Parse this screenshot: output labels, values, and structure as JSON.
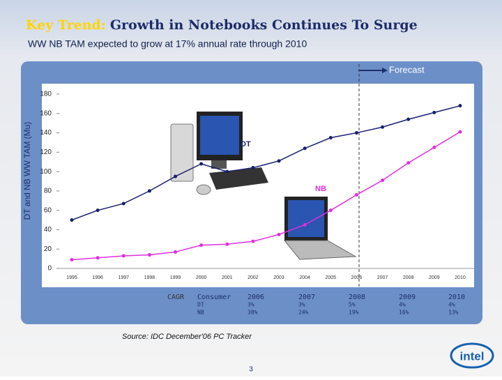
{
  "title_lead": "Key Trend:",
  "title": "Growth in Notebooks Continues To Surge",
  "subtitle": "WW NB TAM expected to grow at 17% annual rate through 2010",
  "chart_data": {
    "type": "line",
    "y_label": "DT and NB WW TAM (Mu)",
    "categories": [
      "1995",
      "1996",
      "1997",
      "1998",
      "1999",
      "2000",
      "2001",
      "2002",
      "2003",
      "2004",
      "2005",
      "2006",
      "2007",
      "2008",
      "2009",
      "2010"
    ],
    "series": [
      {
        "name": "DT",
        "color": "#1a1f6e",
        "values": [
          50,
          60,
          67,
          80,
          95,
          108,
          100,
          104,
          111,
          124,
          135,
          140,
          146,
          154,
          161,
          168
        ]
      },
      {
        "name": "NB",
        "color": "#e02ee0",
        "values": [
          9,
          11,
          13,
          14,
          17,
          24,
          25,
          28,
          35,
          45,
          60,
          76,
          91,
          109,
          125,
          141
        ]
      }
    ],
    "ylim": [
      0,
      180
    ],
    "yticks": [
      0,
      20,
      40,
      60,
      80,
      100,
      120,
      140,
      160,
      180
    ],
    "forecast_label": "Forecast"
  },
  "cagr_table": {
    "label": "CAGR",
    "header": [
      "Consumer",
      "2006",
      "2007",
      "2008",
      "2009",
      "2010"
    ],
    "rows": [
      [
        "DT",
        "3%",
        "3%",
        "5%",
        "4%",
        "4%"
      ],
      [
        "NB",
        "38%",
        "24%",
        "19%",
        "16%",
        "13%"
      ]
    ]
  },
  "source": "Source: IDC December'06 PC Tracker",
  "page_number": "3",
  "logo": "intel"
}
